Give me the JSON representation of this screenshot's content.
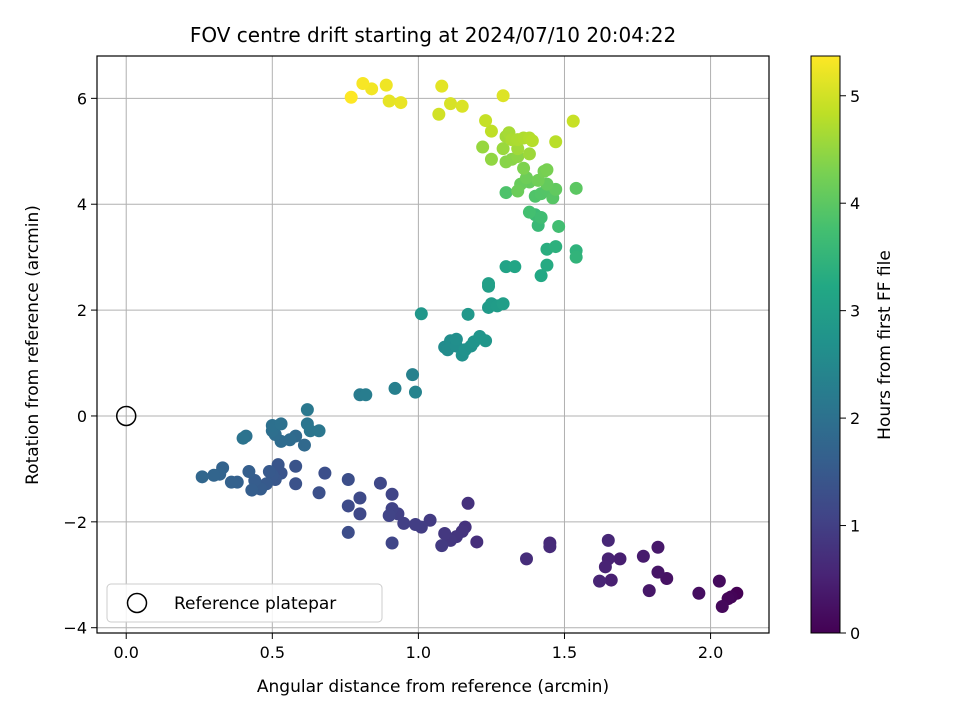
{
  "chart_data": {
    "type": "scatter",
    "title": "FOV centre drift starting at 2024/07/10 20:04:22",
    "xlabel": "Angular distance from reference (arcmin)",
    "ylabel": "Rotation from reference (arcmin)",
    "xlim": [
      -0.1,
      2.2
    ],
    "ylim": [
      -4.1,
      6.8
    ],
    "xticks": [
      0.0,
      0.5,
      1.0,
      1.5,
      2.0
    ],
    "xtick_labels": [
      "0.0",
      "0.5",
      "1.0",
      "1.5",
      "2.0"
    ],
    "yticks": [
      -4,
      -2,
      0,
      2,
      4,
      6
    ],
    "ytick_labels": [
      "−4",
      "−2",
      "0",
      "2",
      "4",
      "6"
    ],
    "grid": true,
    "legend": {
      "position": "lower-left",
      "entries": [
        "Reference platepar"
      ]
    },
    "reference_point": {
      "x": 0.0,
      "y": 0.0
    },
    "colorbar": {
      "label": "Hours from first FF file",
      "range": [
        0,
        5.37
      ],
      "ticks": [
        0,
        1,
        2,
        3,
        4,
        5
      ],
      "tick_labels": [
        "0",
        "1",
        "2",
        "3",
        "4",
        "5"
      ],
      "colormap": "viridis"
    },
    "points": [
      {
        "x": 2.09,
        "y": -3.35,
        "t": 0.0
      },
      {
        "x": 2.07,
        "y": -3.42,
        "t": 0.05
      },
      {
        "x": 2.06,
        "y": -3.45,
        "t": 0.08
      },
      {
        "x": 2.04,
        "y": -3.6,
        "t": 0.12
      },
      {
        "x": 2.03,
        "y": -3.12,
        "t": 0.15
      },
      {
        "x": 1.96,
        "y": -3.35,
        "t": 0.2
      },
      {
        "x": 1.85,
        "y": -3.07,
        "t": 0.26
      },
      {
        "x": 1.82,
        "y": -2.95,
        "t": 0.3
      },
      {
        "x": 1.79,
        "y": -3.3,
        "t": 0.33
      },
      {
        "x": 1.82,
        "y": -2.48,
        "t": 0.36
      },
      {
        "x": 1.77,
        "y": -2.65,
        "t": 0.4
      },
      {
        "x": 1.69,
        "y": -2.7,
        "t": 0.45
      },
      {
        "x": 1.66,
        "y": -3.1,
        "t": 0.48
      },
      {
        "x": 1.65,
        "y": -2.7,
        "t": 0.5
      },
      {
        "x": 1.64,
        "y": -2.85,
        "t": 0.52
      },
      {
        "x": 1.62,
        "y": -3.12,
        "t": 0.55
      },
      {
        "x": 1.65,
        "y": -2.35,
        "t": 0.58
      },
      {
        "x": 1.45,
        "y": -2.4,
        "t": 0.62
      },
      {
        "x": 1.45,
        "y": -2.47,
        "t": 0.65
      },
      {
        "x": 1.37,
        "y": -2.7,
        "t": 0.68
      },
      {
        "x": 1.2,
        "y": -2.38,
        "t": 0.72
      },
      {
        "x": 1.17,
        "y": -1.65,
        "t": 0.75
      },
      {
        "x": 1.16,
        "y": -2.1,
        "t": 0.78
      },
      {
        "x": 1.15,
        "y": -2.18,
        "t": 0.8
      },
      {
        "x": 1.13,
        "y": -2.28,
        "t": 0.82
      },
      {
        "x": 1.11,
        "y": -2.35,
        "t": 0.85
      },
      {
        "x": 1.09,
        "y": -2.22,
        "t": 0.88
      },
      {
        "x": 1.08,
        "y": -2.45,
        "t": 0.9
      },
      {
        "x": 1.04,
        "y": -1.97,
        "t": 0.92
      },
      {
        "x": 1.01,
        "y": -2.1,
        "t": 0.95
      },
      {
        "x": 0.99,
        "y": -2.05,
        "t": 0.98
      },
      {
        "x": 0.95,
        "y": -2.03,
        "t": 1.0
      },
      {
        "x": 0.93,
        "y": -1.85,
        "t": 1.02
      },
      {
        "x": 0.91,
        "y": -1.75,
        "t": 1.05
      },
      {
        "x": 0.9,
        "y": -1.88,
        "t": 1.08
      },
      {
        "x": 0.91,
        "y": -1.48,
        "t": 1.1
      },
      {
        "x": 0.91,
        "y": -2.4,
        "t": 1.12
      },
      {
        "x": 0.87,
        "y": -1.27,
        "t": 1.15
      },
      {
        "x": 0.8,
        "y": -1.85,
        "t": 1.18
      },
      {
        "x": 0.8,
        "y": -1.55,
        "t": 1.2
      },
      {
        "x": 0.76,
        "y": -1.7,
        "t": 1.22
      },
      {
        "x": 0.76,
        "y": -2.2,
        "t": 1.25
      },
      {
        "x": 0.76,
        "y": -1.2,
        "t": 1.28
      },
      {
        "x": 0.68,
        "y": -1.08,
        "t": 1.3
      },
      {
        "x": 0.66,
        "y": -1.45,
        "t": 1.32
      },
      {
        "x": 0.58,
        "y": -1.28,
        "t": 1.35
      },
      {
        "x": 0.58,
        "y": -0.95,
        "t": 1.38
      },
      {
        "x": 0.53,
        "y": -1.08,
        "t": 1.4
      },
      {
        "x": 0.52,
        "y": -0.92,
        "t": 1.42
      },
      {
        "x": 0.51,
        "y": -1.2,
        "t": 1.45
      },
      {
        "x": 0.5,
        "y": -1.12,
        "t": 1.48
      },
      {
        "x": 0.49,
        "y": -1.05,
        "t": 1.5
      },
      {
        "x": 0.48,
        "y": -1.28,
        "t": 1.52
      },
      {
        "x": 0.46,
        "y": -1.38,
        "t": 1.55
      },
      {
        "x": 0.44,
        "y": -1.22,
        "t": 1.58
      },
      {
        "x": 0.43,
        "y": -1.4,
        "t": 1.6
      },
      {
        "x": 0.42,
        "y": -1.05,
        "t": 1.62
      },
      {
        "x": 0.38,
        "y": -1.25,
        "t": 1.65
      },
      {
        "x": 0.36,
        "y": -1.25,
        "t": 1.68
      },
      {
        "x": 0.33,
        "y": -0.98,
        "t": 1.7
      },
      {
        "x": 0.32,
        "y": -1.1,
        "t": 1.72
      },
      {
        "x": 0.3,
        "y": -1.12,
        "t": 1.75
      },
      {
        "x": 0.26,
        "y": -1.15,
        "t": 1.78
      },
      {
        "x": 0.61,
        "y": -0.55,
        "t": 1.82
      },
      {
        "x": 0.58,
        "y": -0.38,
        "t": 1.85
      },
      {
        "x": 0.56,
        "y": -0.45,
        "t": 1.88
      },
      {
        "x": 0.53,
        "y": -0.48,
        "t": 1.9
      },
      {
        "x": 0.51,
        "y": -0.35,
        "t": 1.92
      },
      {
        "x": 0.5,
        "y": -0.28,
        "t": 1.95
      },
      {
        "x": 0.5,
        "y": -0.18,
        "t": 1.98
      },
      {
        "x": 0.53,
        "y": -0.15,
        "t": 2.0
      },
      {
        "x": 0.41,
        "y": -0.38,
        "t": 2.02
      },
      {
        "x": 0.4,
        "y": -0.42,
        "t": 2.05
      },
      {
        "x": 0.62,
        "y": -0.15,
        "t": 2.08
      },
      {
        "x": 0.63,
        "y": -0.28,
        "t": 2.1
      },
      {
        "x": 0.66,
        "y": -0.28,
        "t": 2.12
      },
      {
        "x": 0.62,
        "y": 0.12,
        "t": 2.15
      },
      {
        "x": 0.8,
        "y": 0.4,
        "t": 2.22
      },
      {
        "x": 0.82,
        "y": 0.4,
        "t": 2.25
      },
      {
        "x": 0.92,
        "y": 0.52,
        "t": 2.3
      },
      {
        "x": 0.98,
        "y": 0.78,
        "t": 2.35
      },
      {
        "x": 0.99,
        "y": 0.45,
        "t": 2.38
      },
      {
        "x": 1.09,
        "y": 1.3,
        "t": 2.55
      },
      {
        "x": 1.1,
        "y": 1.25,
        "t": 2.58
      },
      {
        "x": 1.11,
        "y": 1.42,
        "t": 2.6
      },
      {
        "x": 1.13,
        "y": 1.32,
        "t": 2.62
      },
      {
        "x": 1.13,
        "y": 1.45,
        "t": 2.65
      },
      {
        "x": 1.15,
        "y": 1.15,
        "t": 2.68
      },
      {
        "x": 1.16,
        "y": 1.25,
        "t": 2.7
      },
      {
        "x": 1.18,
        "y": 1.32,
        "t": 2.72
      },
      {
        "x": 1.19,
        "y": 1.4,
        "t": 2.75
      },
      {
        "x": 1.21,
        "y": 1.5,
        "t": 2.78
      },
      {
        "x": 1.23,
        "y": 1.42,
        "t": 2.8
      },
      {
        "x": 1.01,
        "y": 1.93,
        "t": 2.82
      },
      {
        "x": 1.17,
        "y": 1.92,
        "t": 2.85
      },
      {
        "x": 1.24,
        "y": 2.05,
        "t": 2.9
      },
      {
        "x": 1.25,
        "y": 2.12,
        "t": 2.92
      },
      {
        "x": 1.27,
        "y": 2.08,
        "t": 2.95
      },
      {
        "x": 1.29,
        "y": 2.12,
        "t": 2.98
      },
      {
        "x": 1.24,
        "y": 2.45,
        "t": 3.0
      },
      {
        "x": 1.24,
        "y": 2.5,
        "t": 3.02
      },
      {
        "x": 1.3,
        "y": 2.82,
        "t": 3.1
      },
      {
        "x": 1.33,
        "y": 2.82,
        "t": 3.15
      },
      {
        "x": 1.42,
        "y": 2.65,
        "t": 3.22
      },
      {
        "x": 1.44,
        "y": 2.85,
        "t": 3.28
      },
      {
        "x": 1.44,
        "y": 3.15,
        "t": 3.35
      },
      {
        "x": 1.47,
        "y": 3.2,
        "t": 3.4
      },
      {
        "x": 1.54,
        "y": 3.12,
        "t": 3.45
      },
      {
        "x": 1.54,
        "y": 3.0,
        "t": 3.48
      },
      {
        "x": 1.41,
        "y": 3.6,
        "t": 3.6
      },
      {
        "x": 1.4,
        "y": 3.8,
        "t": 3.65
      },
      {
        "x": 1.42,
        "y": 3.75,
        "t": 3.7
      },
      {
        "x": 1.48,
        "y": 3.58,
        "t": 3.72
      },
      {
        "x": 1.38,
        "y": 3.85,
        "t": 3.75
      },
      {
        "x": 1.3,
        "y": 4.22,
        "t": 3.85
      },
      {
        "x": 1.4,
        "y": 4.15,
        "t": 3.88
      },
      {
        "x": 1.42,
        "y": 4.2,
        "t": 3.9
      },
      {
        "x": 1.44,
        "y": 4.28,
        "t": 3.92
      },
      {
        "x": 1.46,
        "y": 4.12,
        "t": 3.95
      },
      {
        "x": 1.54,
        "y": 4.3,
        "t": 4.0
      },
      {
        "x": 1.47,
        "y": 4.28,
        "t": 4.05
      },
      {
        "x": 1.44,
        "y": 4.38,
        "t": 4.08
      },
      {
        "x": 1.38,
        "y": 4.42,
        "t": 4.1
      },
      {
        "x": 1.35,
        "y": 4.38,
        "t": 4.12
      },
      {
        "x": 1.34,
        "y": 4.25,
        "t": 4.15
      },
      {
        "x": 1.37,
        "y": 4.5,
        "t": 4.18
      },
      {
        "x": 1.41,
        "y": 4.45,
        "t": 4.2
      },
      {
        "x": 1.43,
        "y": 4.62,
        "t": 4.25
      },
      {
        "x": 1.44,
        "y": 4.65,
        "t": 4.28
      },
      {
        "x": 1.36,
        "y": 4.68,
        "t": 4.32
      },
      {
        "x": 1.3,
        "y": 4.8,
        "t": 4.4
      },
      {
        "x": 1.32,
        "y": 4.85,
        "t": 4.42
      },
      {
        "x": 1.34,
        "y": 4.9,
        "t": 4.45
      },
      {
        "x": 1.25,
        "y": 4.85,
        "t": 4.48
      },
      {
        "x": 1.22,
        "y": 5.08,
        "t": 4.52
      },
      {
        "x": 1.29,
        "y": 5.05,
        "t": 4.55
      },
      {
        "x": 1.38,
        "y": 4.95,
        "t": 4.58
      },
      {
        "x": 1.34,
        "y": 5.05,
        "t": 4.6
      },
      {
        "x": 1.3,
        "y": 5.28,
        "t": 4.62
      },
      {
        "x": 1.31,
        "y": 5.35,
        "t": 4.65
      },
      {
        "x": 1.32,
        "y": 5.22,
        "t": 4.68
      },
      {
        "x": 1.34,
        "y": 5.22,
        "t": 4.7
      },
      {
        "x": 1.36,
        "y": 5.25,
        "t": 4.72
      },
      {
        "x": 1.38,
        "y": 5.25,
        "t": 4.75
      },
      {
        "x": 1.39,
        "y": 5.2,
        "t": 4.78
      },
      {
        "x": 1.47,
        "y": 5.18,
        "t": 4.8
      },
      {
        "x": 1.25,
        "y": 5.38,
        "t": 4.85
      },
      {
        "x": 1.23,
        "y": 5.58,
        "t": 4.9
      },
      {
        "x": 1.53,
        "y": 5.57,
        "t": 4.92
      },
      {
        "x": 1.07,
        "y": 5.7,
        "t": 5.0
      },
      {
        "x": 1.11,
        "y": 5.9,
        "t": 5.05
      },
      {
        "x": 1.15,
        "y": 5.85,
        "t": 5.08
      },
      {
        "x": 1.29,
        "y": 6.05,
        "t": 5.1
      },
      {
        "x": 1.08,
        "y": 6.23,
        "t": 5.15
      },
      {
        "x": 0.9,
        "y": 5.95,
        "t": 5.18
      },
      {
        "x": 0.94,
        "y": 5.92,
        "t": 5.2
      },
      {
        "x": 0.89,
        "y": 6.25,
        "t": 5.25
      },
      {
        "x": 0.84,
        "y": 6.18,
        "t": 5.28
      },
      {
        "x": 0.81,
        "y": 6.28,
        "t": 5.32
      },
      {
        "x": 0.77,
        "y": 6.02,
        "t": 5.37
      }
    ]
  }
}
